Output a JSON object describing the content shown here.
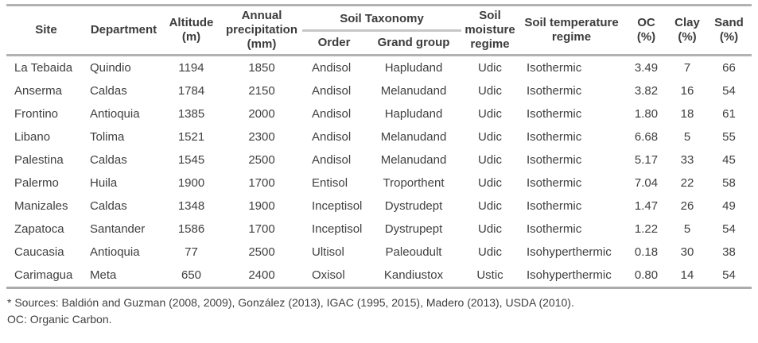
{
  "table": {
    "headers": {
      "site": "Site",
      "department": "Department",
      "altitude": "Altitude\n(m)",
      "precipitation": "Annual\nprecipitation\n(mm)",
      "soil_taxonomy_group": "Soil Taxonomy",
      "order": "Order",
      "grand_group": "Grand group",
      "moisture": "Soil\nmoisture\nregime",
      "temperature": "Soil temperature\nregime",
      "oc": "OC\n(%)",
      "clay": "Clay\n(%)",
      "sand": "Sand\n(%)"
    },
    "rows": [
      [
        "La Tebaida",
        "Quindio",
        "1194",
        "1850",
        "Andisol",
        "Hapludand",
        "Udic",
        "Isothermic",
        "3.49",
        "7",
        "66"
      ],
      [
        "Anserma",
        "Caldas",
        "1784",
        "2150",
        "Andisol",
        "Melanudand",
        "Udic",
        "Isothermic",
        "3.82",
        "16",
        "54"
      ],
      [
        "Frontino",
        "Antioquia",
        "1385",
        "2000",
        "Andisol",
        "Hapludand",
        "Udic",
        "Isothermic",
        "1.80",
        "18",
        "61"
      ],
      [
        "Libano",
        "Tolima",
        "1521",
        "2300",
        "Andisol",
        "Melanudand",
        "Udic",
        "Isothermic",
        "6.68",
        "5",
        "55"
      ],
      [
        "Palestina",
        "Caldas",
        "1545",
        "2500",
        "Andisol",
        "Melanudand",
        "Udic",
        "Isothermic",
        "5.17",
        "33",
        "45"
      ],
      [
        "Palermo",
        "Huila",
        "1900",
        "1700",
        "Entisol",
        "Troporthent",
        "Udic",
        "Isothermic",
        "7.04",
        "22",
        "58"
      ],
      [
        "Manizales",
        "Caldas",
        "1348",
        "1900",
        "Inceptisol",
        "Dystrudept",
        "Udic",
        "Isothermic",
        "1.47",
        "26",
        "49"
      ],
      [
        "Zapatoca",
        "Santander",
        "1586",
        "1700",
        "Inceptisol",
        "Dystrupept",
        "Udic",
        "Isothermic",
        "1.22",
        "5",
        "54"
      ],
      [
        "Caucasia",
        "Antioquia",
        "77",
        "2500",
        "Ultisol",
        "Paleoudult",
        "Udic",
        "Isohyperthermic",
        "0.18",
        "30",
        "38"
      ],
      [
        "Carimagua",
        "Meta",
        "650",
        "2400",
        "Oxisol",
        "Kandiustox",
        "Ustic",
        "Isohyperthermic",
        "0.80",
        "14",
        "54"
      ]
    ]
  },
  "footnotes": {
    "sources": "* Sources: Baldión and Guzman (2008, 2009), González (2013), IGAC (1995, 2015), Madero (2013), USDA (2010).",
    "oc_note": "OC: Organic Carbon."
  },
  "colors": {
    "text": "#3f3f3f",
    "rule": "#b2b2b2",
    "group_underline": "#c7c7c7",
    "background": "#ffffff"
  }
}
